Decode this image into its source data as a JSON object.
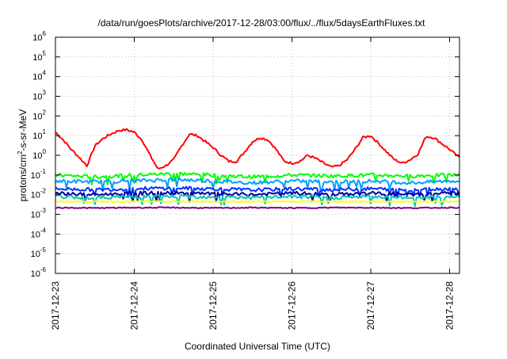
{
  "chart_data": {
    "type": "line",
    "title": "/data/run/goesPlots/archive/2017-12-28/03:00/flux/../flux/5daysEarthFluxes.txt",
    "xlabel": "Coordinated Universal Time (UTC)",
    "ylabel": {
      "base": "protons/cm",
      "sup": "2",
      "rest": "-s-sr-MeV"
    },
    "y_scale": "log",
    "ylim": [
      1e-06,
      1000000.0
    ],
    "y_ticks": [
      {
        "value": 1e-06,
        "exp": "-6"
      },
      {
        "value": 1e-05,
        "exp": "-5"
      },
      {
        "value": 0.0001,
        "exp": "-4"
      },
      {
        "value": 0.001,
        "exp": "-3"
      },
      {
        "value": 0.01,
        "exp": "-2"
      },
      {
        "value": 0.1,
        "exp": "-1"
      },
      {
        "value": 1,
        "exp": "0"
      },
      {
        "value": 10,
        "exp": "1"
      },
      {
        "value": 100,
        "exp": "2"
      },
      {
        "value": 1000,
        "exp": "3"
      },
      {
        "value": 10000,
        "exp": "4"
      },
      {
        "value": 100000,
        "exp": "5"
      },
      {
        "value": 1000000,
        "exp": "6"
      }
    ],
    "y_tick_base": "10",
    "xlim": [
      "2017-12-23 00:00",
      "2017-12-28 03:00"
    ],
    "x_ticks": [
      "2017-12-23",
      "2017-12-24",
      "2017-12-25",
      "2017-12-26",
      "2017-12-27",
      "2017-12-28"
    ],
    "grid": true,
    "legend": "none",
    "series": [
      {
        "color": "#ff0000",
        "x_days": [
          0,
          0.1,
          0.2,
          0.3,
          0.4,
          0.5,
          0.6,
          0.7,
          0.8,
          0.9,
          1.0,
          1.1,
          1.2,
          1.3,
          1.4,
          1.5,
          1.6,
          1.7,
          1.8,
          1.9,
          2.0,
          2.1,
          2.2,
          2.3,
          2.4,
          2.5,
          2.6,
          2.7,
          2.8,
          2.9,
          3.0,
          3.1,
          3.2,
          3.3,
          3.4,
          3.5,
          3.6,
          3.7,
          3.8,
          3.9,
          4.0,
          4.1,
          4.2,
          4.3,
          4.4,
          4.5,
          4.6,
          4.7,
          4.8,
          4.9,
          5.0,
          5.1,
          5.125
        ],
        "values": [
          15,
          6,
          2,
          0.8,
          0.3,
          3,
          7,
          12,
          18,
          20,
          15,
          6,
          1,
          0.2,
          0.3,
          0.6,
          3,
          12,
          10,
          5,
          2.5,
          1,
          0.5,
          0.5,
          1.5,
          5,
          8,
          6,
          2,
          0.5,
          0.4,
          0.5,
          1,
          0.7,
          0.4,
          0.25,
          0.3,
          0.6,
          2,
          8,
          10,
          4,
          1.5,
          0.6,
          0.4,
          0.6,
          1.2,
          9,
          8,
          4,
          2,
          0.9,
          0.7
        ]
      },
      {
        "color": "#00ff00",
        "x_days": [
          0,
          0.5,
          1.0,
          1.5,
          2.0,
          2.5,
          3.0,
          3.5,
          4.0,
          4.5,
          5.0,
          5.125
        ],
        "values": [
          0.1,
          0.08,
          0.1,
          0.12,
          0.1,
          0.08,
          0.1,
          0.09,
          0.1,
          0.09,
          0.1,
          0.1
        ]
      },
      {
        "color": "#00a0ff",
        "x_days": [
          0,
          0.5,
          1.0,
          1.5,
          2.0,
          2.5,
          3.0,
          3.5,
          4.0,
          4.5,
          5.0,
          5.125
        ],
        "values": [
          0.05,
          0.045,
          0.05,
          0.06,
          0.05,
          0.04,
          0.05,
          0.045,
          0.05,
          0.04,
          0.05,
          0.05
        ]
      },
      {
        "color": "#0030ff",
        "x_days": [
          0,
          0.5,
          1.0,
          1.5,
          2.0,
          2.5,
          3.0,
          3.5,
          4.0,
          4.5,
          5.0,
          5.125
        ],
        "values": [
          0.02,
          0.018,
          0.02,
          0.022,
          0.02,
          0.017,
          0.02,
          0.018,
          0.02,
          0.018,
          0.02,
          0.02
        ]
      },
      {
        "color": "#0000a0",
        "x_days": [
          0,
          0.5,
          1.0,
          1.5,
          2.0,
          2.5,
          3.0,
          3.5,
          4.0,
          4.5,
          5.0,
          5.125
        ],
        "values": [
          0.012,
          0.01,
          0.012,
          0.012,
          0.011,
          0.01,
          0.012,
          0.01,
          0.012,
          0.01,
          0.012,
          0.012
        ]
      },
      {
        "color": "#00c8b4",
        "x_days": [
          0,
          0.5,
          1.0,
          1.5,
          2.0,
          2.5,
          3.0,
          3.5,
          4.0,
          4.5,
          5.0,
          5.125
        ],
        "values": [
          0.008,
          0.007,
          0.008,
          0.008,
          0.008,
          0.007,
          0.008,
          0.007,
          0.008,
          0.007,
          0.008,
          0.008
        ]
      },
      {
        "color": "#ffff00",
        "x_days": [
          0,
          0.5,
          1.0,
          1.5,
          2.0,
          2.5,
          3.0,
          3.5,
          4.0,
          4.5,
          5.0,
          5.125
        ],
        "values": [
          0.0045,
          0.0045,
          0.0045,
          0.0045,
          0.0045,
          0.0045,
          0.0045,
          0.0045,
          0.0045,
          0.0045,
          0.0045,
          0.0045
        ]
      },
      {
        "color": "#800080",
        "x_days": [
          0,
          0.5,
          1.0,
          1.5,
          2.0,
          2.5,
          3.0,
          3.5,
          4.0,
          4.5,
          5.0,
          5.125
        ],
        "values": [
          0.0022,
          0.0021,
          0.0022,
          0.0022,
          0.0021,
          0.0022,
          0.0021,
          0.0022,
          0.0022,
          0.0021,
          0.0022,
          0.0022
        ]
      }
    ]
  }
}
